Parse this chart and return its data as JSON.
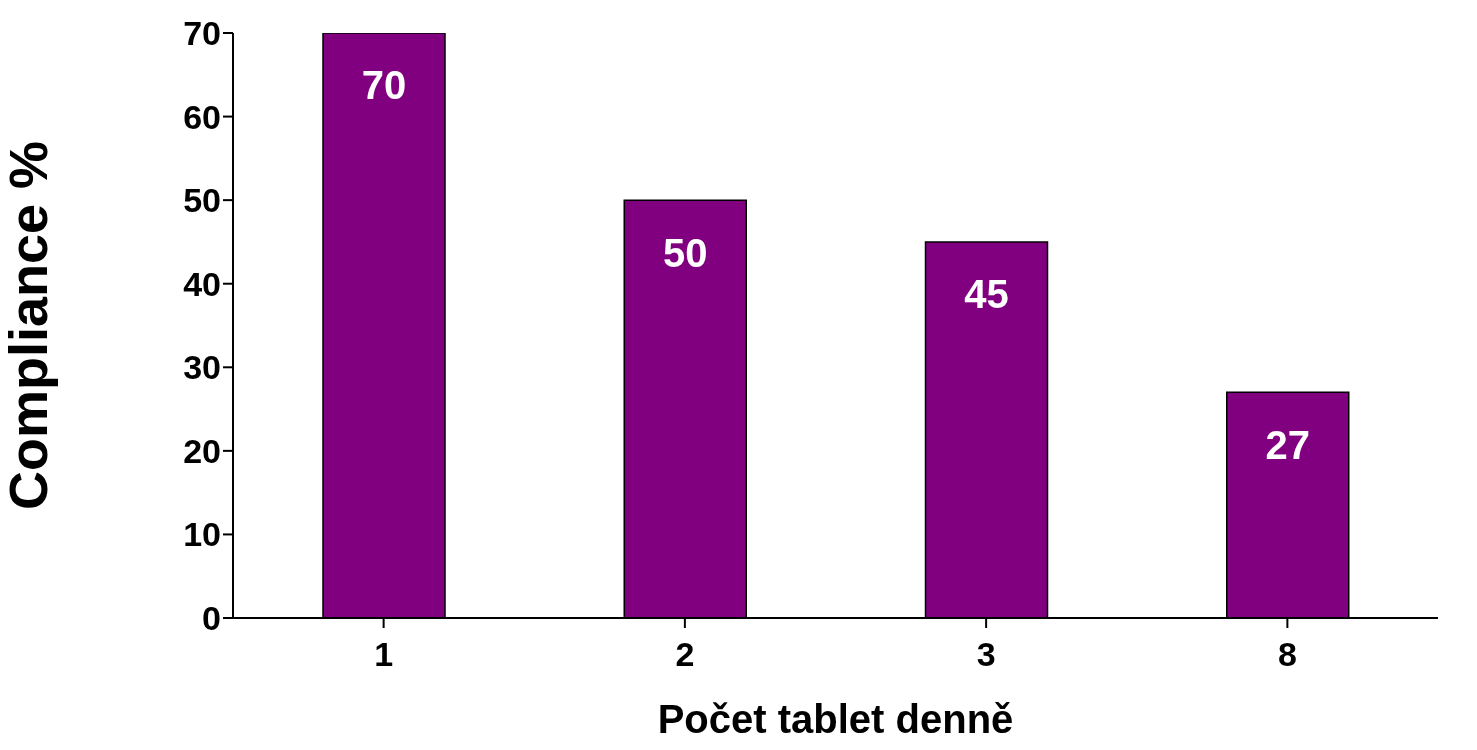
{
  "chart_data": {
    "type": "bar",
    "xlabel": "Počet tablet denně",
    "ylabel": "Compliance %",
    "categories": [
      "1",
      "2",
      "3",
      "8"
    ],
    "values": [
      70,
      50,
      45,
      27
    ],
    "color": "#800080",
    "ylim": [
      0,
      70
    ],
    "yticks": [
      0,
      10,
      20,
      30,
      40,
      50,
      60,
      70
    ],
    "data_labels": true
  }
}
